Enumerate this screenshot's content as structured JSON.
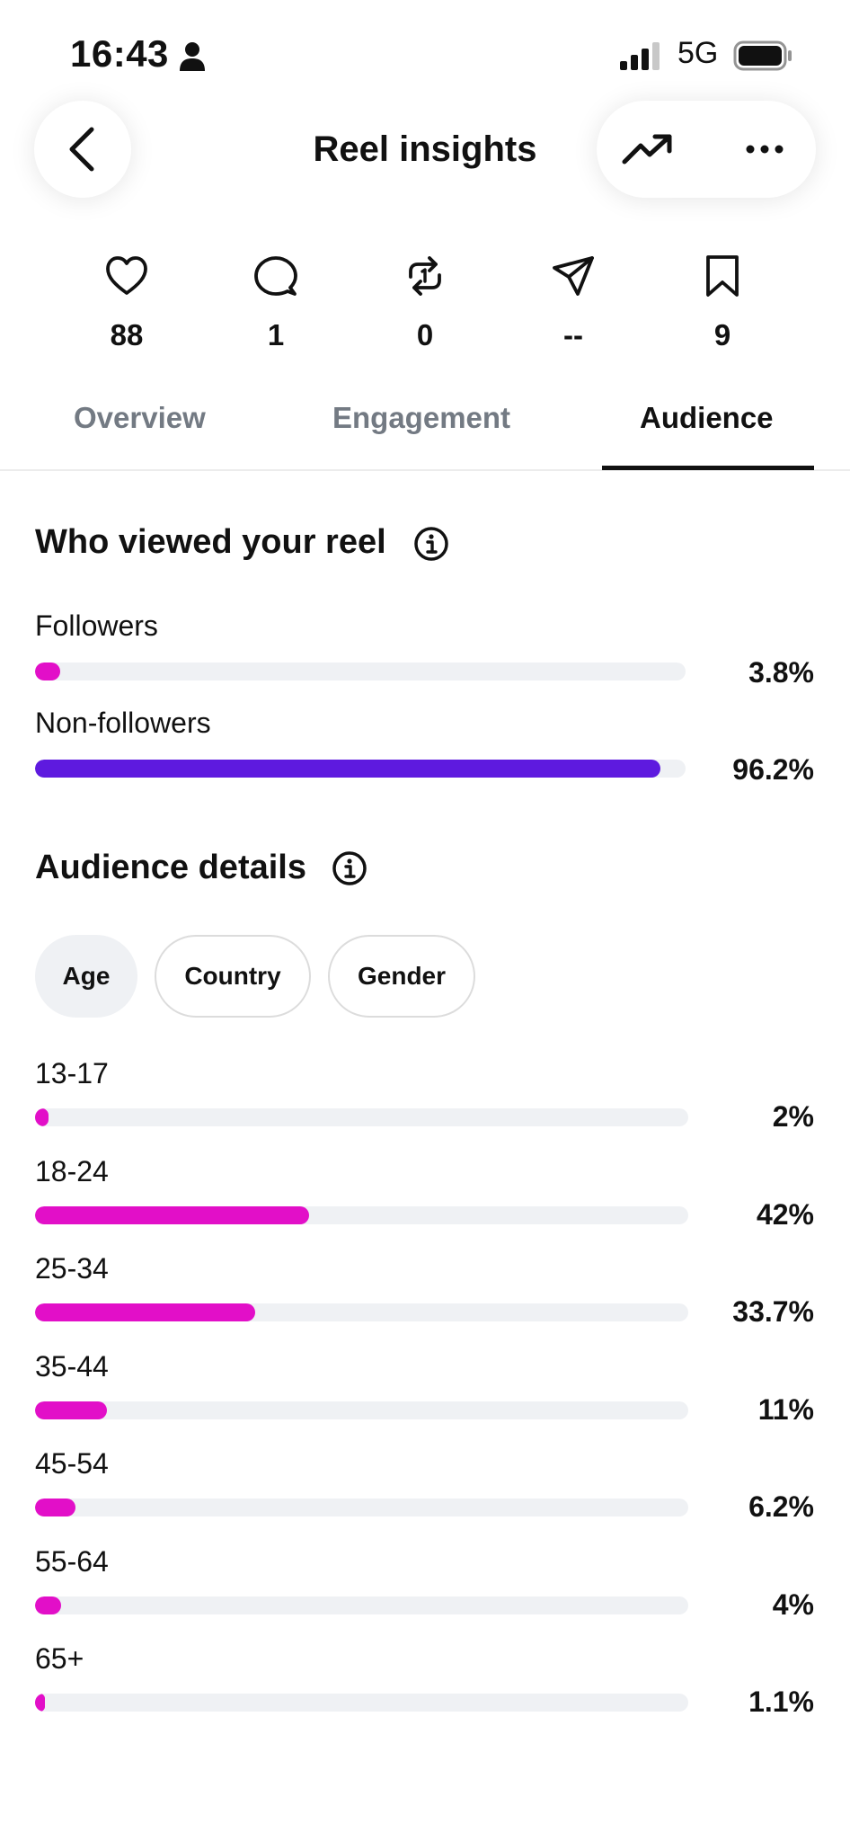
{
  "status_bar": {
    "time": "16:43",
    "network": "5G"
  },
  "header": {
    "title": "Reel insights"
  },
  "stats": [
    {
      "icon": "heart-icon",
      "value": "88"
    },
    {
      "icon": "comment-icon",
      "value": "1"
    },
    {
      "icon": "repost-icon",
      "value": "0"
    },
    {
      "icon": "share-icon",
      "value": "--"
    },
    {
      "icon": "save-icon",
      "value": "9"
    }
  ],
  "tabs": [
    {
      "label": "Overview",
      "active": false
    },
    {
      "label": "Engagement",
      "active": false
    },
    {
      "label": "Audience",
      "active": true
    }
  ],
  "viewers": {
    "title": "Who viewed your reel",
    "rows": [
      {
        "label": "Followers",
        "value": "3.8%",
        "pct": 3.8,
        "color": "#E20FC8"
      },
      {
        "label": "Non-followers",
        "value": "96.2%",
        "pct": 96.2,
        "color": "#5E1ADF"
      }
    ]
  },
  "audience": {
    "title": "Audience details",
    "chips": [
      {
        "label": "Age",
        "active": true
      },
      {
        "label": "Country",
        "active": false
      },
      {
        "label": "Gender",
        "active": false
      }
    ],
    "age_rows": [
      {
        "label": "13-17",
        "value": "2%",
        "pct": 2
      },
      {
        "label": "18-24",
        "value": "42%",
        "pct": 42
      },
      {
        "label": "25-34",
        "value": "33.7%",
        "pct": 33.7
      },
      {
        "label": "35-44",
        "value": "11%",
        "pct": 11
      },
      {
        "label": "45-54",
        "value": "6.2%",
        "pct": 6.2
      },
      {
        "label": "55-64",
        "value": "4%",
        "pct": 4
      },
      {
        "label": "65+",
        "value": "1.1%",
        "pct": 1.1
      }
    ],
    "bar_color": "#E20FC8"
  }
}
